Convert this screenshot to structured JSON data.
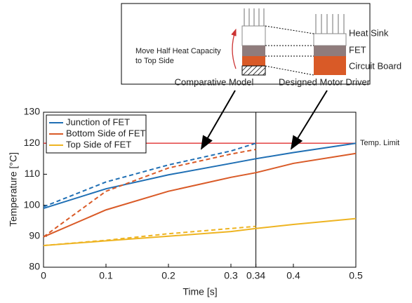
{
  "chart_data": {
    "type": "line",
    "x_label": "Time [s]",
    "y_label": "Temperature [°C]",
    "x": [
      0,
      0.1,
      0.2,
      0.3,
      0.34,
      0.4,
      0.5
    ],
    "series": [
      {
        "name": "Junction of FET",
        "color": "#1f6fb4",
        "values": [
          99,
          105.3,
          109.8,
          113.5,
          115,
          117,
          120
        ]
      },
      {
        "name": "Bottom Side of FET",
        "color": "#d95a27",
        "values": [
          89.8,
          98.5,
          104.5,
          109,
          110.5,
          113.5,
          116.7
        ]
      },
      {
        "name": "Top Side of FET",
        "color": "#eeb422",
        "values": [
          87,
          88.5,
          90,
          91.5,
          92.5,
          93.8,
          95.7
        ]
      },
      {
        "color": "#1f6fb4",
        "dashed": true,
        "values": [
          99.5,
          107.5,
          113,
          117.5,
          120,
          null,
          null
        ]
      },
      {
        "color": "#d95a27",
        "dashed": true,
        "values": [
          89.8,
          104.5,
          112,
          116.5,
          118,
          null,
          null
        ]
      },
      {
        "color": "#eeb422",
        "dashed": true,
        "values": [
          87,
          88.7,
          90.8,
          92.5,
          93.2,
          null,
          null
        ]
      }
    ],
    "xlim": [
      0,
      0.5
    ],
    "ylim": [
      80,
      130
    ],
    "xticks": [
      0,
      0.1,
      0.2,
      0.3,
      0.34,
      0.4,
      0.5
    ],
    "yticks": [
      80,
      90,
      100,
      110,
      120,
      130
    ],
    "vline": 0.34,
    "hline": {
      "value": 120,
      "label": "Temp. Limit",
      "color": "#e03030"
    },
    "legend": "upper left"
  },
  "diagram": {
    "note_lines": [
      "Move Half Heat Capacity",
      "to Top Side"
    ],
    "layers": [
      "Heat Sink",
      "FET",
      "Circuit Board"
    ],
    "left_caption": "Comparative Model",
    "right_caption": "Designed Motor Driver"
  }
}
